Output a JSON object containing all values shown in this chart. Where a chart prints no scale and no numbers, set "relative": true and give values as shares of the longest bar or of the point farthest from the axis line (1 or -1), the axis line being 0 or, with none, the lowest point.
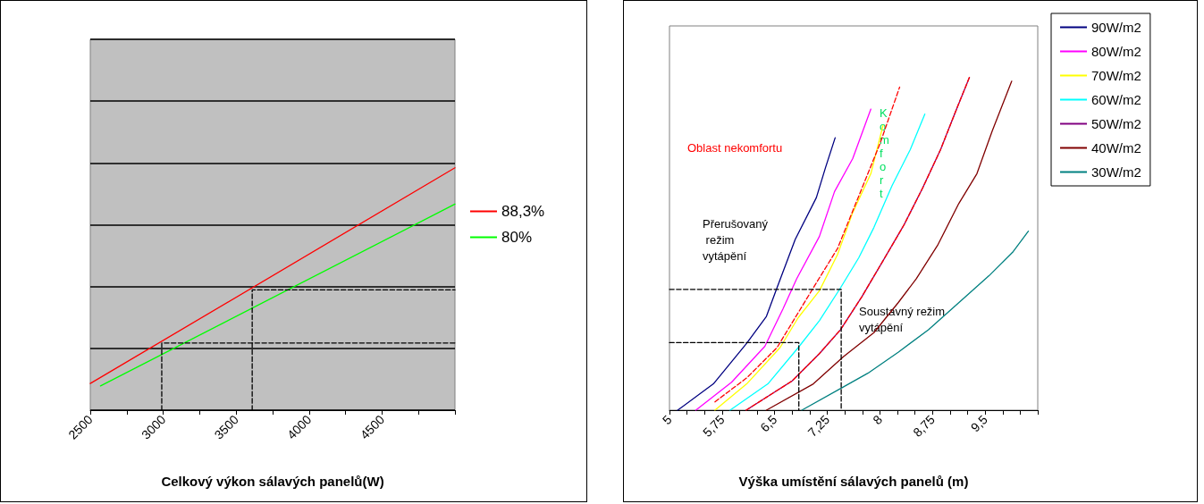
{
  "chart_data": [
    {
      "type": "line",
      "relative": true,
      "xlabel": "Celkový výkon sálavých panelů(W)",
      "xlim": [
        2500,
        5000
      ],
      "xticks": [
        2500,
        {
          "value": 2750,
          "label": null
        },
        3000,
        {
          "value": 3250,
          "label": null
        },
        3500,
        {
          "value": 3750,
          "label": null
        },
        4000,
        {
          "value": 4250,
          "label": null
        },
        4500,
        {
          "value": 4750,
          "label": null
        },
        {
          "value": 5000,
          "label": null
        }
      ],
      "grid": "y",
      "legend": "right",
      "tick_labels": "x",
      "marker": "none",
      "series": [
        {
          "name": "88,3%",
          "color": "#ff0000",
          "x": [
            2500,
            5000
          ],
          "values": [
            0.11,
            1
          ]
        },
        {
          "name": "80%",
          "color": "#00ff00",
          "x": [
            2570,
            5000
          ],
          "values": [
            0.1,
            0.85
          ]
        },
        {
          "color": "#000000",
          "line_style": "dashed",
          "x": [
            2990,
            2990,
            5000
          ],
          "values": [
            0,
            0.277,
            0.277
          ]
        },
        {
          "color": "#000000",
          "line_style": "dashed",
          "x": [
            3610,
            3610,
            5000
          ],
          "values": [
            0,
            0.496,
            0.496
          ]
        }
      ]
    },
    {
      "type": "line",
      "relative": true,
      "xlabel": "Výška umístění sálavých panelů (m)",
      "xlim": [
        5,
        10.25
      ],
      "xticks": [
        5,
        {
          "value": 5.25,
          "label": null
        },
        {
          "value": 5.5,
          "label": null
        },
        {
          "value": 5.75,
          "label": "5,75"
        },
        {
          "value": 6,
          "label": null
        },
        {
          "value": 6.25,
          "label": null
        },
        {
          "value": 6.5,
          "label": "6,5"
        },
        {
          "value": 6.75,
          "label": null
        },
        {
          "value": 7,
          "label": null
        },
        {
          "value": 7.25,
          "label": "7,25"
        },
        {
          "value": 7.5,
          "label": null
        },
        {
          "value": 7.75,
          "label": null
        },
        8,
        {
          "value": 8.25,
          "label": null
        },
        {
          "value": 8.5,
          "label": null
        },
        {
          "value": 8.75,
          "label": "8,75"
        },
        {
          "value": 9,
          "label": null
        },
        {
          "value": 9.25,
          "label": null
        },
        {
          "value": 9.5,
          "label": "9,5"
        },
        {
          "value": 9.75,
          "label": null
        },
        {
          "value": 10,
          "label": null
        },
        {
          "value": 10.25,
          "label": null
        }
      ],
      "grid": false,
      "legend": "top right",
      "tick_labels": "x",
      "marker": "none",
      "annotations": [
        "Oblast nekomfortu",
        "Přerušovaný režim vytápění",
        "Komfort",
        "Soustavný režim vytápění"
      ],
      "series": [
        {
          "name": "90W/m2",
          "color": "#000080",
          "x": [
            5.117,
            5.626,
            6.101,
            6.382,
            6.533,
            6.792,
            7.094,
            7.224,
            7.362
          ],
          "values": [
            0,
            0.079,
            0.201,
            0.282,
            0.368,
            0.513,
            0.639,
            0.729,
            0.819
          ]
        },
        {
          "name": "80W/m2",
          "color": "#ff00ff",
          "x": [
            5.376,
            5.885,
            6.36,
            6.619,
            6.813,
            7.137,
            7.353,
            7.612,
            7.871
          ],
          "values": [
            0,
            0.084,
            0.192,
            0.305,
            0.395,
            0.522,
            0.657,
            0.756,
            0.905
          ]
        },
        {
          "name": "70W/m2",
          "color": "#ffff00",
          "x": [
            5.648,
            6.101,
            6.576,
            6.835,
            7.137,
            7.396,
            7.612,
            7.871,
            8.044
          ],
          "values": [
            0,
            0.079,
            0.188,
            0.278,
            0.359,
            0.468,
            0.594,
            0.711,
            0.856
          ]
        },
        {
          "name": "60W/m2",
          "color": "#00ffff",
          "x": [
            5.864,
            6.403,
            6.835,
            7.137,
            7.439,
            7.698,
            7.914,
            8.173,
            8.432,
            8.64
          ],
          "values": [
            0,
            0.079,
            0.188,
            0.269,
            0.368,
            0.458,
            0.549,
            0.675,
            0.783,
            0.89
          ]
        },
        {
          "name": "50W/m2",
          "color": "#800080",
          "x": [
            6.093,
            6.749,
            7.137,
            7.439,
            7.742,
            8.044,
            8.346,
            8.605,
            8.864,
            9.102,
            9.275
          ],
          "values": [
            0,
            0.088,
            0.17,
            0.242,
            0.341,
            0.449,
            0.558,
            0.666,
            0.783,
            0.91,
            1
          ]
        },
        {
          "name": "40W/m2",
          "color": "#800000",
          "x": [
            6.382,
            7.051,
            7.482,
            7.914,
            8.26,
            8.519,
            8.821,
            9.124,
            9.383,
            9.599,
            9.879
          ],
          "values": [
            0,
            0.079,
            0.161,
            0.233,
            0.323,
            0.395,
            0.495,
            0.621,
            0.711,
            0.838,
            0.989
          ]
        },
        {
          "name": "30W/m2",
          "color": "#008080",
          "x": [
            6.887,
            7.482,
            7.828,
            8.26,
            8.692,
            9.124,
            9.555,
            9.901,
            10.117
          ],
          "values": [
            0,
            0.07,
            0.111,
            0.174,
            0.242,
            0.323,
            0.404,
            0.477,
            0.538
          ]
        },
        {
          "color": "#ff0000",
          "line_style": "dashed",
          "x": [
            5.648,
            6.101,
            6.533,
            6.792,
            7.051,
            7.396,
            7.655,
            8.001,
            8.281
          ],
          "values": [
            0.025,
            0.097,
            0.188,
            0.278,
            0.368,
            0.486,
            0.621,
            0.801,
            0.971
          ]
        },
        {
          "color": "#ff0000",
          "line_style": "dashed",
          "x": [
            6.093,
            6.749,
            7.137,
            7.439,
            7.742,
            8.044,
            8.346,
            8.605,
            8.864,
            9.102,
            9.275
          ],
          "values": [
            0,
            0.088,
            0.17,
            0.242,
            0.341,
            0.449,
            0.558,
            0.666,
            0.783,
            0.91,
            1
          ]
        },
        {
          "color": "#000000",
          "line_style": "dashed",
          "x": [
            5,
            6.844,
            6.844
          ],
          "values": [
            0.203,
            0.203,
            0
          ]
        },
        {
          "color": "#000000",
          "line_style": "dashed",
          "x": [
            5,
            7.448,
            7.448
          ],
          "values": [
            0.363,
            0.363,
            0
          ]
        }
      ]
    }
  ]
}
